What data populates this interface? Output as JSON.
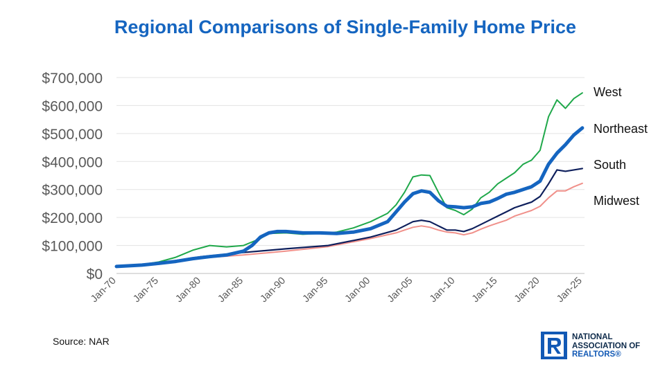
{
  "chart_data": {
    "type": "line",
    "title": "Regional Comparisons of Single-Family Home Price",
    "xlabel": "",
    "ylabel": "",
    "x_ticks": [
      "Jan-70",
      "Jan-75",
      "Jan-80",
      "Jan-85",
      "Jan-90",
      "Jan-95",
      "Jan-00",
      "Jan-05",
      "Jan-10",
      "Jan-15",
      "Jan-20",
      "Jan-25"
    ],
    "y_ticks": [
      "$0",
      "$100,000",
      "$200,000",
      "$300,000",
      "$400,000",
      "$500,000",
      "$600,000",
      "$700,000"
    ],
    "ylim": [
      0,
      700000
    ],
    "xlim": [
      1970,
      2025.25
    ],
    "grid": true,
    "series": [
      {
        "name": "West",
        "color": "#1fa84a",
        "x": [
          1970,
          1973,
          1975,
          1977,
          1979,
          1981,
          1983,
          1985,
          1987,
          1988,
          1990,
          1992,
          1994,
          1996,
          1998,
          2000,
          2002,
          2003,
          2004,
          2005,
          2006,
          2007,
          2008,
          2009,
          2010,
          2011,
          2012,
          2013,
          2014,
          2015,
          2016,
          2017,
          2018,
          2019,
          2020,
          2021,
          2022,
          2023,
          2024,
          2025
        ],
        "y": [
          24000,
          32000,
          41000,
          58000,
          83000,
          100000,
          95000,
          100000,
          125000,
          143000,
          145000,
          140000,
          143000,
          148000,
          163000,
          185000,
          215000,
          245000,
          290000,
          345000,
          352000,
          350000,
          290000,
          235000,
          225000,
          210000,
          230000,
          270000,
          290000,
          320000,
          340000,
          360000,
          390000,
          405000,
          440000,
          560000,
          620000,
          590000,
          625000,
          645000
        ]
      },
      {
        "name": "Northeast",
        "color": "#1565c0",
        "x": [
          1970,
          1973,
          1975,
          1977,
          1979,
          1981,
          1983,
          1985,
          1986,
          1987,
          1988,
          1989,
          1990,
          1992,
          1994,
          1996,
          1998,
          2000,
          2002,
          2003,
          2004,
          2005,
          2006,
          2007,
          2008,
          2009,
          2010,
          2011,
          2012,
          2013,
          2014,
          2015,
          2016,
          2017,
          2018,
          2019,
          2020,
          2021,
          2022,
          2023,
          2024,
          2025
        ],
        "y": [
          25000,
          30000,
          36000,
          43000,
          53000,
          60000,
          66000,
          80000,
          100000,
          130000,
          145000,
          150000,
          150000,
          145000,
          145000,
          143000,
          148000,
          160000,
          185000,
          220000,
          255000,
          285000,
          295000,
          290000,
          260000,
          240000,
          238000,
          235000,
          238000,
          250000,
          255000,
          268000,
          283000,
          290000,
          300000,
          310000,
          330000,
          390000,
          430000,
          460000,
          495000,
          520000
        ]
      },
      {
        "name": "South",
        "color": "#0e1f5c",
        "x": [
          1970,
          1975,
          1980,
          1985,
          1990,
          1995,
          2000,
          2003,
          2004,
          2005,
          2006,
          2007,
          2008,
          2009,
          2010,
          2011,
          2012,
          2013,
          2014,
          2015,
          2016,
          2017,
          2018,
          2019,
          2020,
          2021,
          2022,
          2023,
          2024,
          2025
        ],
        "y": [
          23000,
          37000,
          60000,
          75000,
          88000,
          100000,
          130000,
          155000,
          170000,
          185000,
          190000,
          185000,
          170000,
          155000,
          155000,
          150000,
          160000,
          175000,
          190000,
          205000,
          220000,
          235000,
          245000,
          255000,
          275000,
          320000,
          370000,
          365000,
          370000,
          375000
        ]
      },
      {
        "name": "Midwest",
        "color": "#f0908a",
        "x": [
          1970,
          1975,
          1980,
          1985,
          1990,
          1995,
          2000,
          2003,
          2004,
          2005,
          2006,
          2007,
          2008,
          2009,
          2010,
          2011,
          2012,
          2013,
          2014,
          2015,
          2016,
          2017,
          2018,
          2019,
          2020,
          2021,
          2022,
          2023,
          2024,
          2025
        ],
        "y": [
          22000,
          33000,
          55000,
          66000,
          80000,
          96000,
          125000,
          145000,
          155000,
          165000,
          170000,
          165000,
          155000,
          148000,
          145000,
          138000,
          145000,
          158000,
          170000,
          180000,
          190000,
          205000,
          215000,
          225000,
          240000,
          270000,
          295000,
          295000,
          310000,
          322000
        ]
      }
    ]
  },
  "source_text": "Source: NAR",
  "logo": {
    "line1": "NATIONAL",
    "line2": "ASSOCIATION OF",
    "line3": "REALTORS®"
  }
}
